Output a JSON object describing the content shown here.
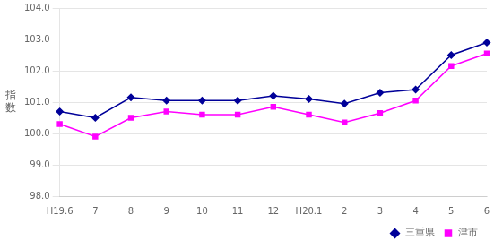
{
  "chart_data": {
    "type": "line",
    "categories": [
      "H19.6",
      "7",
      "8",
      "9",
      "10",
      "11",
      "12",
      "H20.1",
      "2",
      "3",
      "4",
      "5",
      "6"
    ],
    "series": [
      {
        "name": "三重県",
        "color": "#000099",
        "marker": "diamond",
        "values": [
          100.7,
          100.5,
          101.15,
          101.05,
          101.05,
          101.05,
          101.2,
          101.1,
          100.95,
          101.3,
          101.4,
          102.5,
          102.9
        ]
      },
      {
        "name": "津市",
        "color": "#FF00FF",
        "marker": "square",
        "values": [
          100.3,
          99.9,
          100.5,
          100.7,
          100.6,
          100.6,
          100.85,
          100.6,
          100.35,
          100.65,
          101.05,
          102.15,
          102.55
        ]
      }
    ],
    "y_label": "指\n数",
    "ylim": [
      98.0,
      104.0
    ],
    "yticks": [
      {
        "value": 98,
        "label": "98.0"
      },
      {
        "value": 99,
        "label": "99.0"
      },
      {
        "value": 100,
        "label": "100.0"
      },
      {
        "value": 101,
        "label": "101.0"
      },
      {
        "value": 102,
        "label": "102.0"
      },
      {
        "value": 103,
        "label": "103.0"
      },
      {
        "value": 104,
        "label": "104.0"
      }
    ],
    "grid": true,
    "legend": "lower right"
  }
}
